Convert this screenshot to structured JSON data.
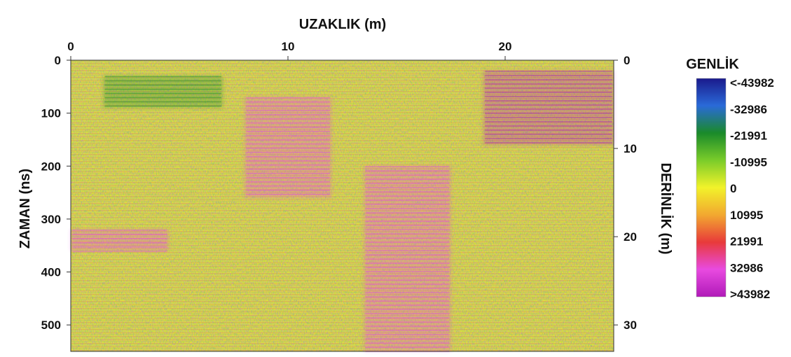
{
  "chart_data": {
    "type": "heatmap",
    "title": "",
    "xlabel": "UZAKLIK (m)",
    "ylabel": "ZAMAN  (ns)",
    "y2label": "DERİNLİK (m)",
    "xlim": [
      0,
      25
    ],
    "ylim": [
      0,
      550
    ],
    "y2lim": [
      0,
      33
    ],
    "x_ticks": [
      "0",
      "10",
      "20"
    ],
    "y_ticks": [
      "0",
      "100",
      "200",
      "300",
      "400",
      "500"
    ],
    "y2_ticks": [
      "0",
      "10",
      "20",
      "30"
    ],
    "colorbar": {
      "title": "GENLİK",
      "labels": [
        "<-43982",
        "-32986",
        "-21991",
        "-10995",
        "0",
        "10995",
        "21991",
        "32986",
        ">43982"
      ],
      "colors": [
        "#1a1a8c",
        "#2a6ad8",
        "#1a8a2a",
        "#7acc2a",
        "#f2f22a",
        "#f2a830",
        "#e83a3a",
        "#e84ae0",
        "#b01ab8"
      ]
    },
    "features": [
      {
        "x": [
          1.5,
          7.0
        ],
        "y": [
          30,
          90
        ],
        "level": "-21991"
      },
      {
        "x": [
          8.0,
          12.0
        ],
        "y": [
          70,
          260
        ],
        "level": "32986"
      },
      {
        "x": [
          0.0,
          4.5
        ],
        "y": [
          320,
          360
        ],
        "level": "32986"
      },
      {
        "x": [
          13.5,
          17.5
        ],
        "y": [
          200,
          550
        ],
        "level": "32986"
      },
      {
        "x": [
          19.0,
          25.0
        ],
        "y": [
          20,
          160
        ],
        "level": ">43982"
      }
    ]
  }
}
